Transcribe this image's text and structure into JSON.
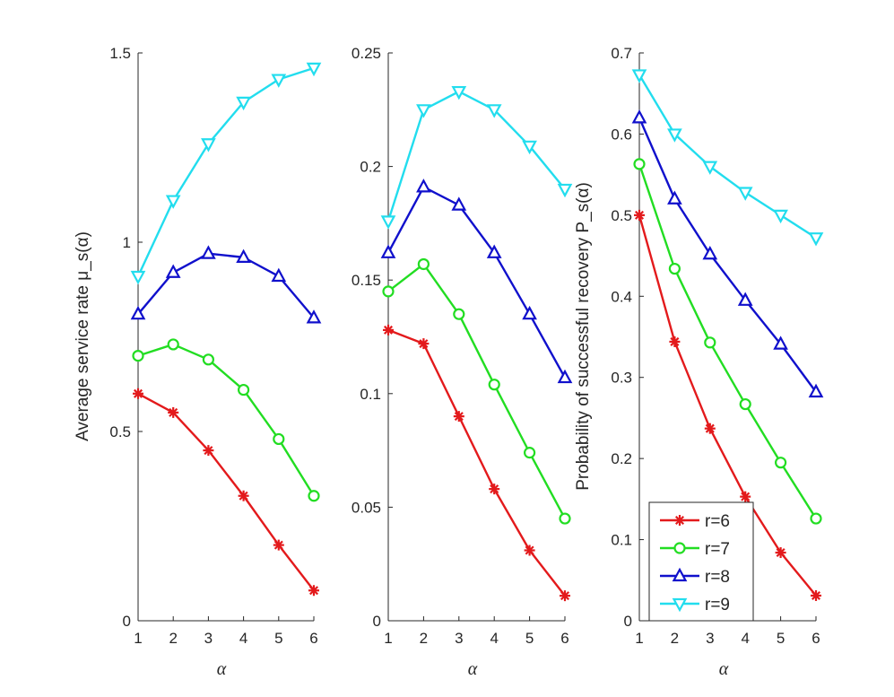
{
  "chart_data": [
    {
      "type": "line",
      "x": [
        1,
        2,
        3,
        4,
        5,
        6
      ],
      "xlabel": "α",
      "ylabel": "Average service rate μ_s(α)",
      "ylim": [
        0,
        1.5
      ],
      "yticks": [
        0,
        0.5,
        1,
        1.5
      ],
      "ytick_labels": [
        "0",
        "0.5",
        "1",
        "1.5"
      ],
      "series": [
        {
          "name": "r=6",
          "values": [
            0.6,
            0.55,
            0.45,
            0.33,
            0.2,
            0.08
          ]
        },
        {
          "name": "r=7",
          "values": [
            0.7,
            0.73,
            0.69,
            0.61,
            0.48,
            0.33
          ]
        },
        {
          "name": "r=8",
          "values": [
            0.81,
            0.92,
            0.97,
            0.96,
            0.91,
            0.8
          ]
        },
        {
          "name": "r=9",
          "values": [
            0.91,
            1.11,
            1.26,
            1.37,
            1.43,
            1.46
          ]
        }
      ]
    },
    {
      "type": "line",
      "x": [
        1,
        2,
        3,
        4,
        5,
        6
      ],
      "xlabel": "α",
      "ylabel": "",
      "ylim": [
        0,
        0.25
      ],
      "yticks": [
        0,
        0.05,
        0.1,
        0.15,
        0.2,
        0.25
      ],
      "ytick_labels": [
        "0",
        "0.05",
        "0.1",
        "0.15",
        "0.2",
        "0.25"
      ],
      "series": [
        {
          "name": "r=6",
          "values": [
            0.128,
            0.122,
            0.09,
            0.058,
            0.031,
            0.011
          ]
        },
        {
          "name": "r=7",
          "values": [
            0.145,
            0.157,
            0.135,
            0.104,
            0.074,
            0.045
          ]
        },
        {
          "name": "r=8",
          "values": [
            0.162,
            0.191,
            0.183,
            0.162,
            0.135,
            0.107
          ]
        },
        {
          "name": "r=9",
          "values": [
            0.176,
            0.225,
            0.233,
            0.225,
            0.209,
            0.19
          ]
        }
      ]
    },
    {
      "type": "line",
      "x": [
        1,
        2,
        3,
        4,
        5,
        6
      ],
      "xlabel": "α",
      "ylabel": "Probability of successful recovery P_s(α)",
      "ylim": [
        0,
        0.7
      ],
      "yticks": [
        0,
        0.1,
        0.2,
        0.3,
        0.4,
        0.5,
        0.6,
        0.7
      ],
      "ytick_labels": [
        "0",
        "0.1",
        "0.2",
        "0.3",
        "0.4",
        "0.5",
        "0.6",
        "0.7"
      ],
      "legend": "bottom-left",
      "series": [
        {
          "name": "r=6",
          "values": [
            0.5,
            0.344,
            0.237,
            0.153,
            0.084,
            0.031
          ]
        },
        {
          "name": "r=7",
          "values": [
            0.563,
            0.434,
            0.343,
            0.267,
            0.195,
            0.126
          ]
        },
        {
          "name": "r=8",
          "values": [
            0.62,
            0.52,
            0.452,
            0.395,
            0.341,
            0.282
          ]
        },
        {
          "name": "r=9",
          "values": [
            0.673,
            0.6,
            0.56,
            0.528,
            0.5,
            0.472
          ]
        }
      ]
    }
  ],
  "styles": {
    "r=6": {
      "color": "#e31a1c",
      "marker": "asterisk-icon"
    },
    "r=7": {
      "color": "#22dd22",
      "marker": "circle-icon"
    },
    "r=8": {
      "color": "#1010cc",
      "marker": "triangle-up-icon"
    },
    "r=9": {
      "color": "#22ddee",
      "marker": "triangle-down-icon"
    }
  },
  "axis_color": "#262626"
}
